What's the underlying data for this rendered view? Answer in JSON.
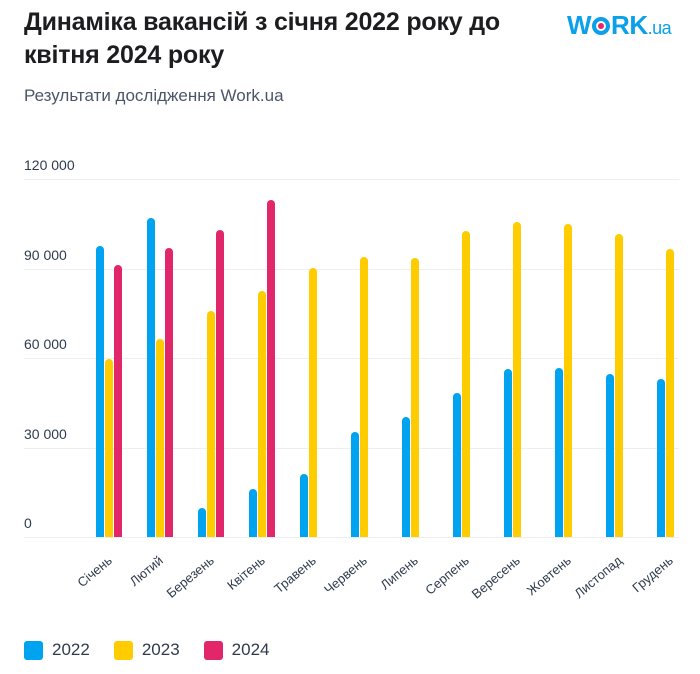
{
  "header": {
    "title": "Динаміка вакансій з січня 2022 року до квітня 2024 року",
    "subtitle": "Результати дослідження Work.ua",
    "logo": {
      "w": "W",
      "rk": "RK",
      "ua": ".ua"
    }
  },
  "colors": {
    "2022": "#00a3ef",
    "2023": "#ffcc00",
    "2024": "#e2266a"
  },
  "chart_data": {
    "type": "bar",
    "title": "Динаміка вакансій з січня 2022 року до квітня 2024 року",
    "subtitle": "Результати дослідження Work.ua",
    "xlabel": "",
    "ylabel": "",
    "ylim": [
      0,
      120000
    ],
    "yticks": [
      "0",
      "30 000",
      "60 000",
      "90 000",
      "120 000"
    ],
    "grid": true,
    "legend_position": "bottom-left",
    "categories": [
      "Січень",
      "Лютий",
      "Березень",
      "Квітень",
      "Травень",
      "Червень",
      "Липень",
      "Серпень",
      "Вересень",
      "Жовтень",
      "Листопад",
      "Грудень"
    ],
    "series": [
      {
        "name": "2022",
        "values": [
          97500,
          106900,
          9700,
          16100,
          21100,
          35200,
          40200,
          48300,
          56300,
          56600,
          54600,
          53000
        ]
      },
      {
        "name": "2023",
        "values": [
          59700,
          66400,
          75800,
          82500,
          90200,
          93900,
          93500,
          102600,
          105600,
          104900,
          101600,
          96500
        ]
      },
      {
        "name": "2024",
        "values": [
          91200,
          96900,
          102900,
          113000,
          null,
          null,
          null,
          null,
          null,
          null,
          null,
          null
        ]
      }
    ]
  },
  "legend": [
    {
      "label": "2022",
      "color": "#00a3ef"
    },
    {
      "label": "2023",
      "color": "#ffcc00"
    },
    {
      "label": "2024",
      "color": "#e2266a"
    }
  ]
}
